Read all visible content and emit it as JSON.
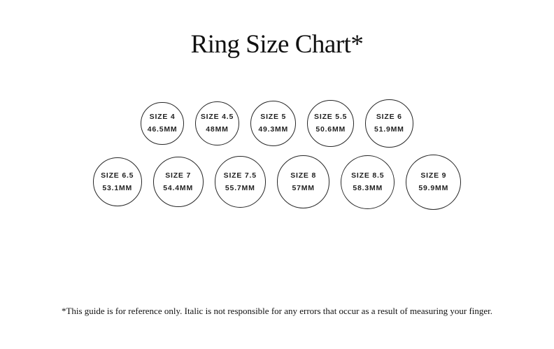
{
  "title": "Ring Size Chart*",
  "footnote": "*This guide is for reference only. Italic is not responsible for any errors that occur as a result of measuring your finger.",
  "colors": {
    "background": "#ffffff",
    "text": "#1a1a1a",
    "ring_outline": "#262626"
  },
  "chart": {
    "rows": [
      {
        "rings": [
          {
            "size_label": "SIZE 4",
            "diameter_label": "46.5MM",
            "diameter_mm": 46.5
          },
          {
            "size_label": "SIZE 4.5",
            "diameter_label": "48MM",
            "diameter_mm": 48
          },
          {
            "size_label": "SIZE 5",
            "diameter_label": "49.3MM",
            "diameter_mm": 49.3
          },
          {
            "size_label": "SIZE 5.5",
            "diameter_label": "50.6MM",
            "diameter_mm": 50.6
          },
          {
            "size_label": "SIZE 6",
            "diameter_label": "51.9MM",
            "diameter_mm": 51.9
          }
        ]
      },
      {
        "rings": [
          {
            "size_label": "SIZE 6.5",
            "diameter_label": "53.1MM",
            "diameter_mm": 53.1
          },
          {
            "size_label": "SIZE 7",
            "diameter_label": "54.4MM",
            "diameter_mm": 54.4
          },
          {
            "size_label": "SIZE 7.5",
            "diameter_label": "55.7MM",
            "diameter_mm": 55.7
          },
          {
            "size_label": "SIZE 8",
            "diameter_label": "57MM",
            "diameter_mm": 57
          },
          {
            "size_label": "SIZE 8.5",
            "diameter_label": "58.3MM",
            "diameter_mm": 58.3
          },
          {
            "size_label": "SIZE 9",
            "diameter_label": "59.9MM",
            "diameter_mm": 59.9
          }
        ]
      }
    ]
  }
}
